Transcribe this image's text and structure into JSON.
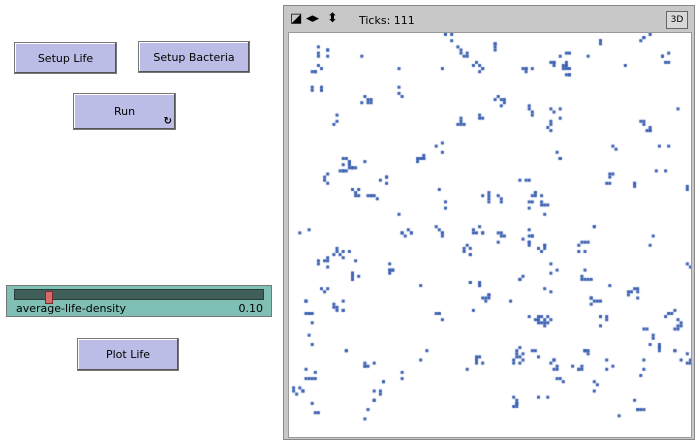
{
  "buttons": {
    "setup_life": "Setup Life",
    "setup_bacteria": "Setup Bacteria",
    "run": "Run",
    "plot_life": "Plot Life"
  },
  "slider": {
    "label": "average-life-density",
    "value": "0.10",
    "fraction": 0.1
  },
  "view": {
    "ticks_label": "Ticks: 111",
    "button_3d": "3D",
    "cell_color": "#3a5fb0"
  },
  "colors": {
    "button": "#bcbde6",
    "slider": "#7fbfb4"
  }
}
